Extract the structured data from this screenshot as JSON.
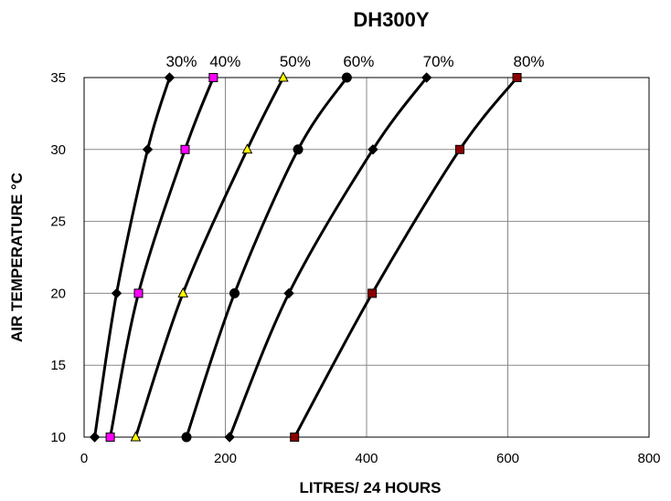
{
  "chart_data": {
    "type": "line",
    "title": "DH300Y",
    "xlabel": "LITRES/ 24 HOURS",
    "ylabel": "AIR TEMPERATURE °C",
    "xlim": [
      0,
      800
    ],
    "ylim": [
      10,
      35
    ],
    "xticks": [
      0,
      200,
      400,
      600,
      800
    ],
    "yticks": [
      10,
      15,
      20,
      25,
      30,
      35
    ],
    "grid": true,
    "legend": "series labels above plot",
    "series": [
      {
        "name": "30%",
        "marker": "diamond",
        "marker_color": "#000000",
        "points": [
          {
            "x": 15,
            "y": 10
          },
          {
            "x": 46,
            "y": 20
          },
          {
            "x": 90,
            "y": 30
          },
          {
            "x": 121,
            "y": 35
          }
        ]
      },
      {
        "name": "40%",
        "marker": "square",
        "marker_color": "#ff00ff",
        "points": [
          {
            "x": 37,
            "y": 10
          },
          {
            "x": 77,
            "y": 20
          },
          {
            "x": 143,
            "y": 30
          },
          {
            "x": 183,
            "y": 35
          }
        ]
      },
      {
        "name": "50%",
        "marker": "triangle",
        "marker_color": "#ffff00",
        "points": [
          {
            "x": 73,
            "y": 10
          },
          {
            "x": 140,
            "y": 20
          },
          {
            "x": 231,
            "y": 30
          },
          {
            "x": 282,
            "y": 35
          }
        ]
      },
      {
        "name": "60%",
        "marker": "circle",
        "marker_color": "#000000",
        "points": [
          {
            "x": 145,
            "y": 10
          },
          {
            "x": 213,
            "y": 20
          },
          {
            "x": 303,
            "y": 30
          },
          {
            "x": 372,
            "y": 35
          }
        ]
      },
      {
        "name": "70%",
        "marker": "diamond",
        "marker_color": "#000000",
        "points": [
          {
            "x": 206,
            "y": 10
          },
          {
            "x": 290,
            "y": 20
          },
          {
            "x": 409,
            "y": 30
          },
          {
            "x": 485,
            "y": 35
          }
        ]
      },
      {
        "name": "80%",
        "marker": "square",
        "marker_color": "#8b0000",
        "points": [
          {
            "x": 298,
            "y": 10
          },
          {
            "x": 408,
            "y": 20
          },
          {
            "x": 532,
            "y": 30
          },
          {
            "x": 613,
            "y": 35
          }
        ]
      }
    ]
  }
}
